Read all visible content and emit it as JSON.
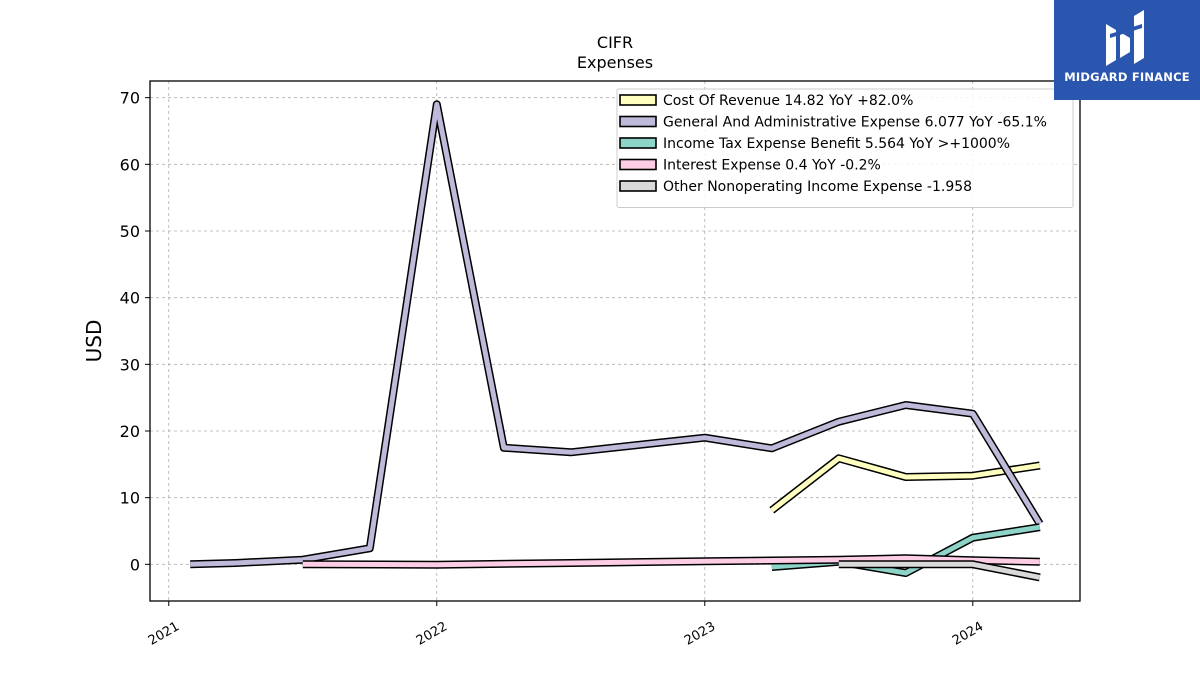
{
  "chart_data": {
    "type": "line",
    "title": "CIFR",
    "subtitle": "Expenses",
    "ylabel": "USD",
    "xlabel": "",
    "ylim": [
      -5.5,
      72.5
    ],
    "xlim": [
      2020.93,
      2024.4
    ],
    "yticks": [
      0,
      10,
      20,
      30,
      40,
      50,
      60,
      70
    ],
    "xticks": [
      {
        "value": 2021,
        "label": "2021"
      },
      {
        "value": 2022,
        "label": "2022"
      },
      {
        "value": 2023,
        "label": "2023"
      },
      {
        "value": 2024,
        "label": "2024"
      }
    ],
    "grid": true,
    "legend_position": "top-right",
    "series": [
      {
        "name": "Cost Of Revenue",
        "legend": "Cost Of Revenue  14.82 YoY +82.0%",
        "color": "#ffffbf",
        "x": [
          2023.25,
          2023.5,
          2023.75,
          2024.0,
          2024.25
        ],
        "y": [
          8.1,
          15.9,
          13.1,
          13.3,
          14.82
        ]
      },
      {
        "name": "General And Administrative Expense",
        "legend": "General And Administrative Expense  6.077 YoY -65.1%",
        "color": "#bebada",
        "x": [
          2021.08,
          2021.25,
          2021.5,
          2021.75,
          2022.0,
          2022.25,
          2022.5,
          2022.75,
          2023.0,
          2023.25,
          2023.5,
          2023.75,
          2024.0,
          2024.25
        ],
        "y": [
          0.0,
          0.2,
          0.7,
          2.4,
          69.0,
          17.5,
          16.8,
          17.9,
          19.0,
          17.4,
          21.4,
          23.9,
          22.6,
          6.077
        ]
      },
      {
        "name": "Income Tax Expense Benefit",
        "legend": "Income Tax Expense Benefit  5.564 YoY >+1000%",
        "color": "#8dd3c7",
        "x": [
          2023.25,
          2023.5,
          2023.75,
          2024.0,
          2024.25
        ],
        "y": [
          -0.4,
          0.4,
          -1.3,
          4.0,
          5.564
        ]
      },
      {
        "name": "Interest Expense",
        "legend": "Interest Expense  0.4 YoY -0.2%",
        "color": "#fccde5",
        "x": [
          2021.5,
          2022.0,
          2022.5,
          2023.0,
          2023.5,
          2023.75,
          2024.0,
          2024.25
        ],
        "y": [
          0.0,
          -0.05,
          0.2,
          0.45,
          0.7,
          0.9,
          0.6,
          0.4
        ]
      },
      {
        "name": "Other Nonoperating Income Expense",
        "legend": "Other Nonoperating Income Expense  -1.958",
        "color": "#d9d9d9",
        "x": [
          2023.5,
          2023.75,
          2024.0,
          2024.25
        ],
        "y": [
          0.0,
          0.0,
          0.0,
          -1.958
        ]
      }
    ]
  },
  "brand": {
    "name": "MIDGARD FINANCE",
    "background": "#2b56b0"
  }
}
